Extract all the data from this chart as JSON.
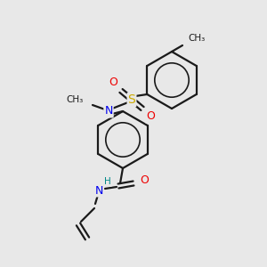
{
  "bg_color": "#e8e8e8",
  "bond_color": "#1a1a1a",
  "atom_colors": {
    "N": "#0000ee",
    "O": "#ee0000",
    "S": "#ccaa00",
    "H": "#008888",
    "C": "#1a1a1a"
  },
  "figsize": [
    3.0,
    3.0
  ],
  "dpi": 100,
  "lw": 1.6,
  "r_upper": 32,
  "r_lower": 32
}
